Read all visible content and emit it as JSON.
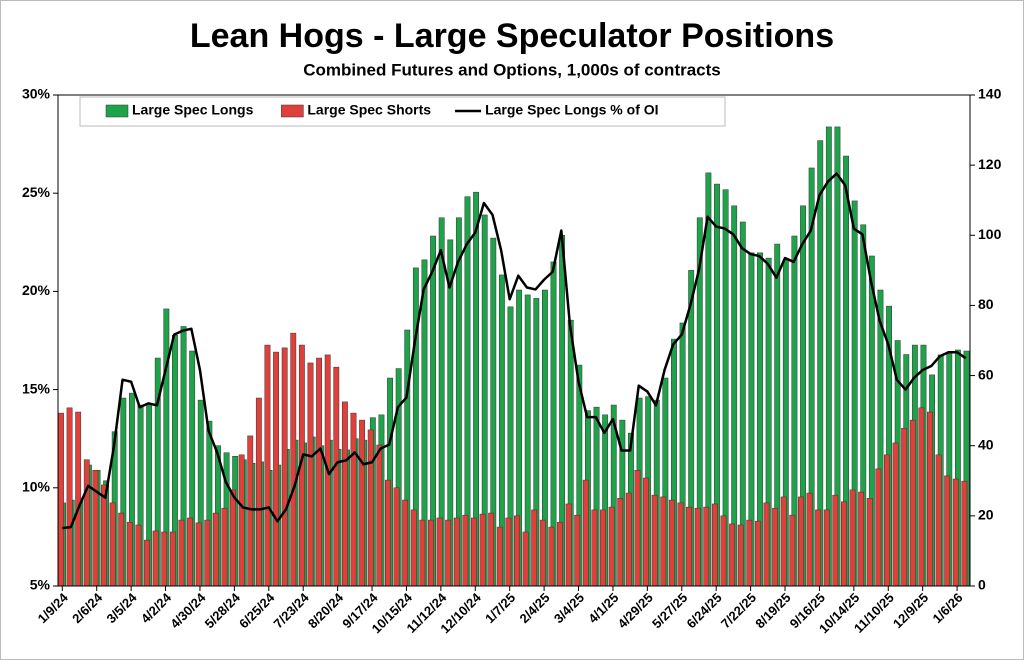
{
  "chart_data": {
    "type": "bar-line",
    "title": "Lean Hogs - Large Speculator Positions",
    "subtitle": "Combined Futures and Options, 1,000s of contracts",
    "categories": [
      "1/9/24",
      null,
      null,
      null,
      "2/6/24",
      null,
      null,
      null,
      "3/5/24",
      null,
      null,
      null,
      "4/2/24",
      null,
      null,
      null,
      "4/30/24",
      null,
      null,
      null,
      "5/28/24",
      null,
      null,
      null,
      "6/25/24",
      null,
      null,
      null,
      "7/23/24",
      null,
      null,
      null,
      "8/20/24",
      null,
      null,
      null,
      "9/17/24",
      null,
      null,
      null,
      "10/15/24",
      null,
      null,
      null,
      "11/12/24",
      null,
      null,
      null,
      "12/10/24",
      null,
      null,
      null,
      "1/7/25",
      null,
      null,
      null,
      "2/4/25",
      null,
      null,
      null,
      "3/4/25",
      null,
      null,
      null,
      "4/1/25",
      null,
      null,
      null,
      "4/29/25",
      null,
      null,
      null,
      "5/27/25",
      null,
      null,
      null,
      "6/24/25",
      null,
      null,
      null,
      "7/22/25",
      null,
      null,
      null,
      "8/19/25",
      null,
      null,
      null,
      "9/16/25",
      null,
      null,
      null,
      "10/14/25",
      null,
      null,
      null,
      "11/10/25",
      null,
      null,
      null,
      "12/9/25",
      null,
      null,
      null,
      "1/6/26",
      null
    ],
    "series": [
      {
        "name": "Large Spec Longs",
        "color": "#1fa34a",
        "axis": "y2",
        "kind": "bar",
        "values": [
          23.7,
          24.5,
          25,
          34.5,
          33,
          30,
          44,
          53.6,
          55,
          51.6,
          52,
          65,
          79,
          71.5,
          74,
          67,
          53,
          47,
          40,
          38,
          37,
          36,
          35,
          35.4,
          33,
          34.5,
          39,
          41.6,
          40.8,
          42.5,
          40,
          41.6,
          39,
          38.8,
          42,
          41.6,
          48,
          48.8,
          59.3,
          62,
          73,
          90.7,
          93,
          99.8,
          105,
          98.7,
          105,
          111,
          112.3,
          105.8,
          99.2,
          88.7,
          79.6,
          84.4,
          83,
          82,
          84.4,
          92.4,
          100,
          75.8,
          63,
          50,
          51,
          48.8,
          51.6,
          47.3,
          43.6,
          53.6,
          54,
          53,
          59.3,
          70.4,
          75,
          90,
          105,
          117.8,
          114.6,
          113,
          108.4,
          103.8,
          95,
          95,
          93.5,
          97.5,
          93,
          99.8,
          108.4,
          119.2,
          127,
          130.9,
          130.9,
          122.6,
          109.8,
          103,
          94.1,
          84.4,
          79.8,
          70,
          66,
          68.7,
          68.7,
          60.2,
          65.9,
          66.7,
          67.3,
          67
        ]
      },
      {
        "name": "Large Spec Shorts",
        "color": "#e0403c",
        "axis": "y2",
        "kind": "bar",
        "values": [
          49.3,
          50.8,
          49.6,
          36,
          33,
          28.8,
          23.7,
          20.8,
          18.2,
          17.4,
          13.1,
          15.7,
          15.4,
          15.4,
          18.8,
          19.4,
          18,
          18.8,
          20.8,
          22.2,
          27.4,
          37.4,
          42.8,
          53.6,
          68.7,
          66.7,
          67.9,
          72.1,
          68.7,
          63.6,
          65,
          65.9,
          62.4,
          52.5,
          49.3,
          47.3,
          44.5,
          40.2,
          30.2,
          28,
          24.5,
          21.7,
          18.8,
          18.8,
          19.4,
          18.8,
          19.4,
          20.2,
          19.4,
          20.5,
          20.8,
          16.8,
          19.4,
          20,
          15.4,
          21.7,
          18.8,
          16.8,
          18.2,
          23.4,
          20.2,
          30.2,
          21.7,
          21.7,
          22.5,
          25,
          26.5,
          33,
          30.8,
          25.9,
          25.4,
          24.5,
          23.7,
          22.5,
          22.2,
          22.5,
          23.4,
          20,
          17.7,
          17.4,
          18.8,
          18.5,
          23.7,
          22.2,
          25.4,
          20.2,
          25.4,
          26.5,
          21.7,
          21.7,
          25.9,
          24,
          27.4,
          26.8,
          25,
          33.4,
          37.4,
          40.8,
          45,
          47.3,
          50.8,
          49.6,
          37.4,
          31.4,
          30.5,
          29.9
        ]
      },
      {
        "name": "Large Spec Longs % of OI",
        "color": "#000000",
        "axis": "y",
        "kind": "line",
        "values": [
          7.95,
          8.0,
          9.1,
          10.1,
          9.8,
          9.5,
          12.1,
          15.5,
          15.4,
          14.1,
          14.3,
          14.2,
          16.0,
          17.8,
          18.0,
          18.1,
          16.0,
          12.9,
          11.8,
          10.3,
          9.5,
          9.0,
          8.9,
          8.9,
          9.0,
          8.3,
          8.9,
          10.1,
          11.7,
          11.6,
          12.0,
          10.7,
          11.3,
          11.4,
          11.8,
          11.2,
          11.3,
          12.0,
          12.2,
          14.1,
          14.6,
          17.5,
          20.1,
          21.0,
          22.1,
          20.2,
          21.5,
          22.4,
          23.0,
          24.5,
          23.9,
          22.1,
          19.6,
          20.8,
          20.2,
          20.1,
          20.6,
          21.0,
          23.1,
          18.3,
          15.4,
          13.6,
          13.6,
          12.8,
          13.5,
          11.9,
          11.9,
          15.2,
          14.9,
          14.2,
          16.0,
          17.3,
          17.8,
          19.3,
          21.1,
          23.8,
          23.3,
          23.2,
          22.9,
          22.2,
          21.9,
          21.8,
          21.4,
          20.7,
          21.7,
          21.5,
          22.4,
          23.1,
          24.9,
          25.6,
          26.0,
          25.4,
          23.2,
          22.9,
          20.5,
          18.5,
          17.3,
          15.5,
          15.0,
          15.6,
          16.0,
          16.2,
          16.7,
          16.9,
          16.9,
          16.6
        ]
      }
    ],
    "ylim": [
      5,
      30
    ],
    "yticks": [
      {
        "value": 5,
        "label": "5%"
      },
      {
        "value": 10,
        "label": "10%"
      },
      {
        "value": 15,
        "label": "15%"
      },
      {
        "value": 20,
        "label": "20%"
      },
      {
        "value": 25,
        "label": "25%"
      },
      {
        "value": 30,
        "label": "30%"
      }
    ],
    "y2lim": [
      0,
      140
    ],
    "y2ticks": [
      0,
      20,
      40,
      60,
      80,
      100,
      120,
      140
    ],
    "legend": "top-left",
    "grid": false
  }
}
